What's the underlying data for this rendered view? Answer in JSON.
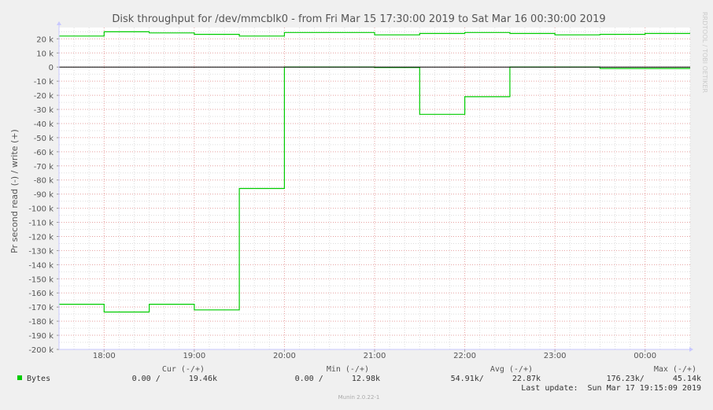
{
  "chart_data": {
    "type": "line",
    "title": "Disk throughput for /dev/mmcblk0 - from Fri Mar 15 17:30:00 2019 to Sat Mar 16 00:30:00 2019",
    "ylabel": "Pr second read (-) / write (+)",
    "xlabel": "",
    "side_label": "RRDTOOL / TOBI OETIKER",
    "footer": "Munin 2.0.22-1",
    "ylim": [
      -200000,
      28000
    ],
    "xlim": [
      "17:30",
      "00:30"
    ],
    "grid": true,
    "y_ticks": [
      {
        "value": 20000,
        "label": "20 k"
      },
      {
        "value": 10000,
        "label": "10 k"
      },
      {
        "value": 0,
        "label": "0"
      },
      {
        "value": -10000,
        "label": "-10 k"
      },
      {
        "value": -20000,
        "label": "-20 k"
      },
      {
        "value": -30000,
        "label": "-30 k"
      },
      {
        "value": -40000,
        "label": "-40 k"
      },
      {
        "value": -50000,
        "label": "-50 k"
      },
      {
        "value": -60000,
        "label": "-60 k"
      },
      {
        "value": -70000,
        "label": "-70 k"
      },
      {
        "value": -80000,
        "label": "-80 k"
      },
      {
        "value": -90000,
        "label": "-90 k"
      },
      {
        "value": -100000,
        "label": "-100 k"
      },
      {
        "value": -110000,
        "label": "-110 k"
      },
      {
        "value": -120000,
        "label": "-120 k"
      },
      {
        "value": -130000,
        "label": "-130 k"
      },
      {
        "value": -140000,
        "label": "-140 k"
      },
      {
        "value": -150000,
        "label": "-150 k"
      },
      {
        "value": -160000,
        "label": "-160 k"
      },
      {
        "value": -170000,
        "label": "-170 k"
      },
      {
        "value": -180000,
        "label": "-180 k"
      },
      {
        "value": -190000,
        "label": "-190 k"
      },
      {
        "value": -200000,
        "label": "-200 k"
      }
    ],
    "x_ticks": [
      "18:00",
      "19:00",
      "20:00",
      "21:00",
      "22:00",
      "23:00",
      "00:00"
    ],
    "series": [
      {
        "name": "Bytes",
        "color": "#00cc00",
        "write": [
          {
            "start": "17:30",
            "end": "18:00",
            "y": 22000
          },
          {
            "start": "18:00",
            "end": "18:30",
            "y": 25000
          },
          {
            "start": "18:30",
            "end": "19:00",
            "y": 24200
          },
          {
            "start": "19:00",
            "end": "19:30",
            "y": 23200
          },
          {
            "start": "19:30",
            "end": "20:00",
            "y": 22000
          },
          {
            "start": "20:00",
            "end": "21:00",
            "y": 24500
          },
          {
            "start": "21:00",
            "end": "21:30",
            "y": 22800
          },
          {
            "start": "21:30",
            "end": "22:00",
            "y": 23800
          },
          {
            "start": "22:00",
            "end": "22:30",
            "y": 24500
          },
          {
            "start": "22:30",
            "end": "23:00",
            "y": 23800
          },
          {
            "start": "23:00",
            "end": "23:30",
            "y": 22800
          },
          {
            "start": "23:30",
            "end": "00:00",
            "y": 23200
          },
          {
            "start": "00:00",
            "end": "00:30",
            "y": 23800
          }
        ],
        "read": [
          {
            "start": "17:30",
            "end": "18:00",
            "y": -168000
          },
          {
            "start": "18:00",
            "end": "18:30",
            "y": -173500
          },
          {
            "start": "18:30",
            "end": "19:00",
            "y": -168000
          },
          {
            "start": "19:00",
            "end": "19:30",
            "y": -172000
          },
          {
            "start": "19:30",
            "end": "20:00",
            "y": -86000
          },
          {
            "start": "20:00",
            "end": "21:00",
            "y": 0
          },
          {
            "start": "21:00",
            "end": "21:30",
            "y": -300
          },
          {
            "start": "21:30",
            "end": "22:00",
            "y": -33500
          },
          {
            "start": "22:00",
            "end": "22:30",
            "y": -21000
          },
          {
            "start": "22:30",
            "end": "23:30",
            "y": 0
          },
          {
            "start": "23:30",
            "end": "00:30",
            "y": -1000
          }
        ]
      }
    ],
    "legend": {
      "headers": [
        "Cur (-/+)",
        "Min (-/+)",
        "Avg (-/+)",
        "Max (-/+)"
      ],
      "rows": [
        {
          "name": "Bytes",
          "color": "#00cc00",
          "cur": "0.00 /      19.46k",
          "min": "0.00 /      12.98k",
          "avg": "54.91k/      22.87k",
          "max": "176.23k/      45.14k"
        }
      ],
      "last_update": "Last update:  Sun Mar 17 19:15:09 2019"
    },
    "colors": {
      "background": "#f0f0f0",
      "plot_background": "#ffffff",
      "grid_major": "#e6a0a0",
      "grid_minor": "#dddddd",
      "axis": "#000000",
      "text": "#555555",
      "frame": "#c8c8ff"
    }
  }
}
